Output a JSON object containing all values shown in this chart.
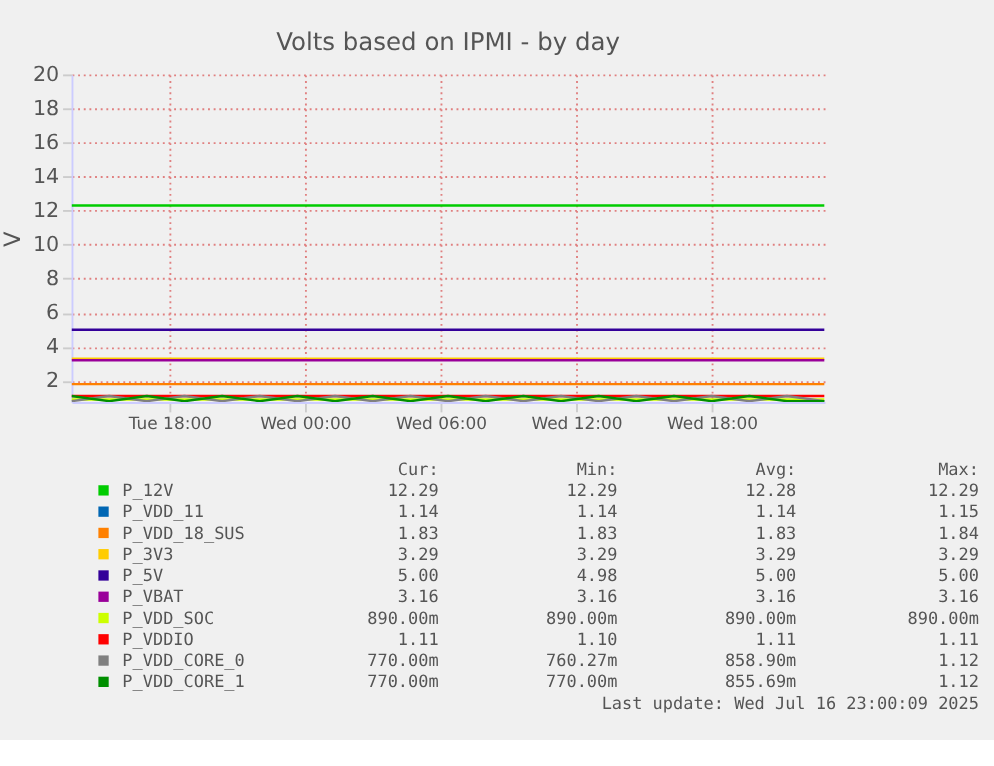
{
  "chart_data": {
    "type": "line",
    "title": "Volts based on IPMI - by day",
    "ylabel": "V",
    "x": [
      "2025-07-15T13:40",
      "2025-07-15T15:20",
      "2025-07-15T17:00",
      "2025-07-15T18:40",
      "2025-07-15T20:20",
      "2025-07-15T22:00",
      "2025-07-15T23:40",
      "2025-07-16T01:20",
      "2025-07-16T03:00",
      "2025-07-16T04:40",
      "2025-07-16T06:20",
      "2025-07-16T08:00",
      "2025-07-16T09:40",
      "2025-07-16T11:20",
      "2025-07-16T13:00",
      "2025-07-16T14:40",
      "2025-07-16T16:20",
      "2025-07-16T18:00",
      "2025-07-16T19:40",
      "2025-07-16T21:20",
      "2025-07-16T23:00"
    ],
    "series": [
      {
        "name": "P_12V",
        "color": "#00cc00",
        "values": [
          12.3,
          12.3,
          12.3,
          12.3,
          12.3,
          12.3,
          12.3,
          12.3,
          12.3,
          12.3,
          12.3,
          12.3,
          12.3,
          12.3,
          12.3,
          12.3,
          12.3,
          12.3,
          12.3,
          12.3,
          12.3
        ]
      },
      {
        "name": "P_VDD_11",
        "color": "#0066b3",
        "values": [
          null,
          null,
          null,
          null,
          null,
          null,
          null,
          null,
          null,
          null,
          null,
          null,
          null,
          null,
          null,
          null,
          null,
          null,
          null,
          null,
          null
        ]
      },
      {
        "name": "P_VDD_18_SUS",
        "color": "#ff8000",
        "values": [
          1.8,
          1.8,
          1.8,
          1.8,
          1.8,
          1.8,
          1.8,
          1.8,
          1.8,
          1.8,
          1.8,
          1.8,
          1.8,
          1.8,
          1.8,
          1.8,
          1.8,
          1.8,
          1.8,
          1.8,
          1.8
        ]
      },
      {
        "name": "P_3V3",
        "color": "#ffcc00",
        "values": [
          3.3,
          3.3,
          3.3,
          3.3,
          3.3,
          3.3,
          3.3,
          3.3,
          3.3,
          3.3,
          3.3,
          3.3,
          3.3,
          3.3,
          3.3,
          3.3,
          3.3,
          3.3,
          3.3,
          3.3,
          3.3
        ]
      },
      {
        "name": "P_5V",
        "color": "#330099",
        "values": [
          5.0,
          5.0,
          5.0,
          5.0,
          5.0,
          5.0,
          5.0,
          5.0,
          5.0,
          5.0,
          5.0,
          5.0,
          5.0,
          5.0,
          5.0,
          5.0,
          5.0,
          5.0,
          5.0,
          5.0,
          5.0
        ]
      },
      {
        "name": "P_VBAT",
        "color": "#990099",
        "values": [
          3.2,
          3.2,
          3.2,
          3.2,
          3.2,
          3.2,
          3.2,
          3.2,
          3.2,
          3.2,
          3.2,
          3.2,
          3.2,
          3.2,
          3.2,
          3.2,
          3.2,
          3.2,
          3.2,
          3.2,
          3.2
        ]
      },
      {
        "name": "P_VDD_SOC",
        "color": "#ccff00",
        "values": [
          0.9,
          0.9,
          0.9,
          0.9,
          0.9,
          0.9,
          0.9,
          0.9,
          0.9,
          0.9,
          0.9,
          0.9,
          0.9,
          0.9,
          0.9,
          0.9,
          0.9,
          0.9,
          0.9,
          0.9,
          0.9
        ]
      },
      {
        "name": "P_VDDIO",
        "color": "#ff0000",
        "values": [
          1.1,
          1.1,
          1.1,
          1.1,
          1.1,
          1.1,
          1.1,
          1.1,
          1.1,
          1.1,
          1.1,
          1.1,
          1.1,
          1.1,
          1.1,
          1.1,
          1.1,
          1.1,
          1.1,
          1.1,
          1.1
        ]
      },
      {
        "name": "P_VDD_CORE_0",
        "color": "#808080",
        "values": [
          0.8,
          1.1,
          0.8,
          1.1,
          0.8,
          1.1,
          0.8,
          1.1,
          0.8,
          1.1,
          0.8,
          1.1,
          0.8,
          1.1,
          0.8,
          1.1,
          0.8,
          1.1,
          0.8,
          1.1,
          0.8
        ]
      },
      {
        "name": "P_VDD_CORE_1",
        "color": "#008f00",
        "values": [
          1.1,
          0.8,
          1.1,
          0.8,
          1.1,
          0.8,
          1.1,
          0.8,
          1.1,
          0.8,
          1.1,
          0.8,
          1.1,
          0.8,
          1.1,
          0.8,
          1.1,
          0.8,
          1.1,
          0.8,
          0.8
        ]
      }
    ],
    "xlim": [
      "2025-07-15T13:40",
      "2025-07-16T23:00"
    ],
    "xticks": [
      {
        "value": "2025-07-15T18:00",
        "label": "Tue 18:00"
      },
      {
        "value": "2025-07-16T00:00",
        "label": "Wed 00:00"
      },
      {
        "value": "2025-07-16T06:00",
        "label": "Wed 06:00"
      },
      {
        "value": "2025-07-16T12:00",
        "label": "Wed 12:00"
      },
      {
        "value": "2025-07-16T18:00",
        "label": "Wed 18:00"
      }
    ],
    "ylim": [
      0.75,
      20
    ],
    "yticks": [
      2,
      4,
      6,
      8,
      10,
      12,
      14,
      16,
      18,
      20
    ],
    "grid": true,
    "legend": "bottom",
    "annotations": [
      "Cur:",
      "Min:",
      "Avg:",
      "Max:",
      "12.29",
      "12.29",
      "12.28",
      "12.29",
      "1.14",
      "1.14",
      "1.14",
      "1.15",
      "1.83",
      "1.83",
      "1.83",
      "1.84",
      "3.29",
      "3.29",
      "3.29",
      "3.29",
      "5.00",
      "4.98",
      "5.00",
      "5.00",
      "3.16",
      "3.16",
      "3.16",
      "3.16",
      "890.00m",
      "890.00m",
      "890.00m",
      "890.00m",
      "1.11",
      "1.10",
      "1.11",
      "1.11",
      "770.00m",
      "760.27m",
      "858.90m",
      "1.12",
      "770.00m",
      "770.00m",
      "855.69m",
      "1.12",
      "Last update: Wed Jul 16 23:00:09 2025"
    ]
  }
}
